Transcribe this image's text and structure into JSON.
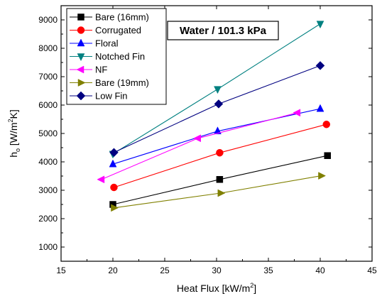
{
  "chart_data": {
    "type": "line",
    "title": "",
    "annotation": "Water / 101.3 kPa",
    "xlabel": {
      "main": "Heat Flux [kW/m",
      "sup": "2",
      "end": "]"
    },
    "ylabel": {
      "main": "h",
      "sub": "o",
      "mid": " [W/m",
      "sup": "2",
      "end": "K]"
    },
    "xlim": [
      15,
      45
    ],
    "ylim": [
      500,
      9500
    ],
    "xticks": [
      15,
      20,
      25,
      30,
      35,
      40,
      45
    ],
    "yticks": [
      1000,
      2000,
      3000,
      4000,
      5000,
      6000,
      7000,
      8000,
      9000
    ],
    "grid": false,
    "legend_position": "top-left",
    "series": [
      {
        "name": "Bare (16mm)",
        "color": "#000000",
        "marker": "square",
        "x": [
          20.0,
          30.3,
          40.7
        ],
        "y": [
          2500,
          3380,
          4220
        ]
      },
      {
        "name": "Corrugated",
        "color": "#ff0000",
        "marker": "circle",
        "x": [
          20.1,
          30.3,
          40.6
        ],
        "y": [
          3100,
          4320,
          5320
        ]
      },
      {
        "name": "Floral",
        "color": "#0000ff",
        "marker": "triangle-up",
        "x": [
          20.0,
          30.1,
          40.0
        ],
        "y": [
          3920,
          5080,
          5870
        ]
      },
      {
        "name": "Notched Fin",
        "color": "#008080",
        "marker": "triangle-down",
        "x": [
          20.0,
          30.1,
          40.0
        ],
        "y": [
          4280,
          6560,
          8860
        ]
      },
      {
        "name": "NF",
        "color": "#ff00ff",
        "marker": "triangle-left",
        "x": [
          18.9,
          28.2,
          37.8
        ],
        "y": [
          3380,
          4830,
          5730
        ]
      },
      {
        "name": "Bare (19mm)",
        "color": "#808000",
        "marker": "triangle-right",
        "x": [
          20.1,
          30.4,
          40.1
        ],
        "y": [
          2380,
          2900,
          3510
        ]
      },
      {
        "name": "Low Fin",
        "color": "#000080",
        "marker": "diamond",
        "x": [
          20.1,
          30.2,
          40.0
        ],
        "y": [
          4330,
          6040,
          7390
        ]
      }
    ]
  }
}
